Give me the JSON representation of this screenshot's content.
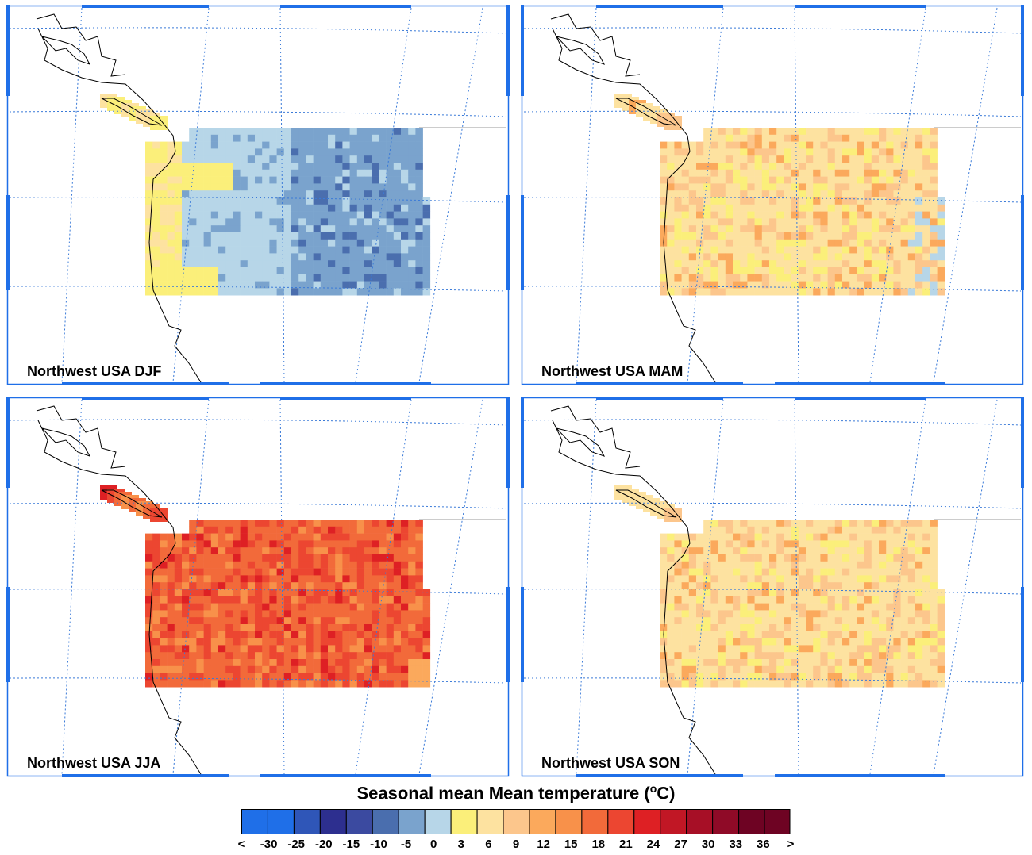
{
  "panels": [
    {
      "title": "Northwest USA DJF",
      "season": "DJF"
    },
    {
      "title": "Northwest USA MAM",
      "season": "MAM"
    },
    {
      "title": "Northwest USA JJA",
      "season": "JJA"
    },
    {
      "title": "Northwest USA SON",
      "season": "SON"
    }
  ],
  "colorbar": {
    "title": "Seasonal mean Mean temperature (",
    "title_unit_sup": "o",
    "title_unit_after": "C)",
    "labels": [
      "<",
      "-30",
      "-25",
      "-20",
      "-15",
      "-10",
      "-5",
      "0",
      "3",
      "6",
      "9",
      "12",
      "15",
      "18",
      "21",
      "24",
      "27",
      "30",
      "33",
      "36",
      ">"
    ],
    "colors": [
      "#1f6fe8",
      "#2f56b8",
      "#2d2f8f",
      "#3b4aa0",
      "#4a6eae",
      "#7aa3cd",
      "#b7d6e8",
      "#fbef7a",
      "#fde2a0",
      "#fcc68c",
      "#fba95c",
      "#f8914a",
      "#f26a3a",
      "#ec4631",
      "#de2024",
      "#c11725",
      "#a70f26",
      "#8f0a27",
      "#6e0323"
    ]
  },
  "map_style": {
    "frame_color": "#1f6fe8",
    "grid_color": "#3a7ad8",
    "coast_color": "#000000"
  }
}
